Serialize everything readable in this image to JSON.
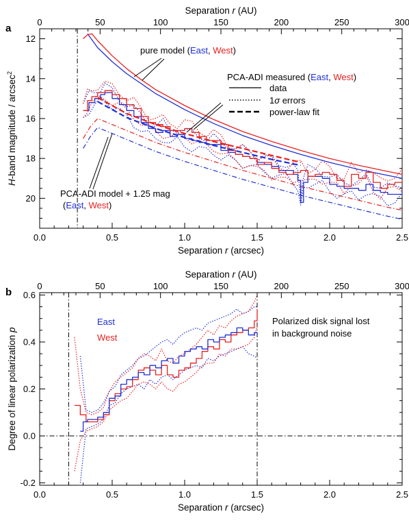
{
  "colors": {
    "east": "#1f2fd6",
    "west": "#e8201e",
    "axis": "#000000"
  },
  "chart_data": [
    {
      "panel_label": "a",
      "type": "line",
      "xlabel": "Separation r (arcsec)",
      "xlabel_parts": [
        "Separation ",
        "r",
        " (arcsec)"
      ],
      "x2label": "Separation r (AU)",
      "x2label_parts": [
        "Separation ",
        "r",
        " (AU)"
      ],
      "ylabel": "H-band magnitude / arcsec²",
      "ylabel_parts": [
        "H",
        "-band magnitude / arcsec",
        "2"
      ],
      "xlim": [
        0,
        2.5
      ],
      "ylim": [
        21.5,
        11.5
      ],
      "y_inverted": true,
      "x_ticks": [
        0.0,
        0.5,
        1.0,
        1.5,
        2.0,
        2.5
      ],
      "x_tick_labels": [
        "0.0",
        "0.5",
        "1.0",
        "1.5",
        "2.0",
        "2.5"
      ],
      "x2_ticks": [
        0,
        50,
        100,
        150,
        200,
        250,
        300
      ],
      "x2_tick_labels": [
        "0",
        "50",
        "100",
        "150",
        "200",
        "250",
        "300"
      ],
      "y_ticks": [
        12,
        14,
        16,
        18,
        20
      ],
      "y_tick_labels": [
        "12",
        "14",
        "16",
        "18",
        "20"
      ],
      "vline_x": 0.26,
      "annotations": {
        "pure_model": [
          "pure model (",
          "East",
          ", ",
          "West",
          ")"
        ],
        "measured": [
          "PCA-ADI measured (",
          "East",
          ", ",
          "West",
          ")"
        ],
        "legend_data": "data",
        "legend_errors": [
          "1",
          "σ",
          " errors"
        ],
        "legend_fit": "power-law fit",
        "model_line1": "PCA-ADI model + 1.25 mag",
        "model_line2": [
          "(",
          "East",
          ", ",
          "West",
          ")"
        ]
      },
      "series": [
        {
          "name": "pure model East",
          "x": [
            0.33,
            0.4,
            0.5,
            0.6,
            0.7,
            0.8,
            1.0,
            1.2,
            1.4,
            1.6,
            1.8,
            2.0,
            2.2,
            2.4,
            2.5
          ],
          "y": [
            11.75,
            12.45,
            13.15,
            13.75,
            14.25,
            14.75,
            15.55,
            16.25,
            16.85,
            17.35,
            17.8,
            18.2,
            18.55,
            18.85,
            19.0
          ]
        },
        {
          "name": "pure model West",
          "x": [
            0.3,
            0.33,
            0.36,
            0.4,
            0.5,
            0.6,
            0.7,
            0.8,
            1.0,
            1.2,
            1.4,
            1.6,
            1.8,
            2.0,
            2.2,
            2.4,
            2.5
          ],
          "y": [
            12.0,
            11.8,
            11.75,
            12.1,
            12.85,
            13.5,
            14.05,
            14.55,
            15.35,
            16.05,
            16.65,
            17.15,
            17.6,
            18.0,
            18.35,
            18.65,
            18.8
          ]
        },
        {
          "name": "measured East",
          "x": [
            0.3,
            0.34,
            0.38,
            0.42,
            0.45,
            0.5,
            0.55,
            0.6,
            0.65,
            0.7,
            0.75,
            0.8,
            0.85,
            0.9,
            0.95,
            1.0,
            1.05,
            1.1,
            1.15,
            1.2,
            1.25,
            1.3,
            1.35,
            1.4,
            1.45,
            1.5,
            1.55,
            1.6,
            1.65,
            1.7,
            1.75,
            1.78,
            1.8,
            1.82,
            1.85,
            1.9,
            1.95,
            2.0,
            2.05,
            2.1,
            2.15,
            2.2,
            2.25,
            2.3,
            2.35,
            2.4,
            2.45,
            2.5
          ],
          "y": [
            15.6,
            15.2,
            15.0,
            14.8,
            14.7,
            15.0,
            15.3,
            15.6,
            15.9,
            16.2,
            16.5,
            16.7,
            16.6,
            16.9,
            16.8,
            17.0,
            17.1,
            17.2,
            17.3,
            17.3,
            17.6,
            17.7,
            17.8,
            17.9,
            18.0,
            18.2,
            18.3,
            18.4,
            18.6,
            18.6,
            18.8,
            19.1,
            20.2,
            19.2,
            18.9,
            18.9,
            19.0,
            19.3,
            19.4,
            19.5,
            19.5,
            19.6,
            19.3,
            19.6,
            19.7,
            19.8,
            19.8,
            19.6
          ]
        },
        {
          "name": "measured West",
          "x": [
            0.3,
            0.33,
            0.36,
            0.4,
            0.45,
            0.5,
            0.55,
            0.6,
            0.65,
            0.7,
            0.75,
            0.8,
            0.85,
            0.9,
            0.95,
            1.0,
            1.05,
            1.1,
            1.15,
            1.2,
            1.25,
            1.3,
            1.35,
            1.4,
            1.45,
            1.5,
            1.55,
            1.6,
            1.65,
            1.7,
            1.75,
            1.8,
            1.85,
            1.9,
            1.95,
            2.0,
            2.05,
            2.1,
            2.15,
            2.2,
            2.25,
            2.3,
            2.35,
            2.4,
            2.45,
            2.5
          ],
          "y": [
            15.6,
            15.1,
            14.9,
            14.7,
            14.6,
            14.8,
            15.0,
            15.3,
            15.5,
            15.9,
            16.2,
            16.3,
            16.4,
            16.6,
            16.6,
            16.5,
            16.7,
            16.9,
            17.1,
            17.1,
            17.3,
            17.6,
            17.8,
            17.9,
            18.0,
            18.3,
            18.2,
            18.5,
            18.7,
            18.8,
            18.7,
            18.6,
            18.9,
            18.8,
            18.7,
            18.8,
            19.1,
            19.4,
            18.8,
            19.0,
            18.7,
            19.2,
            19.5,
            19.3,
            19.2,
            19.1
          ]
        },
        {
          "name": "power-law fit East",
          "x": [
            0.4,
            0.6,
            0.8,
            1.0,
            1.2,
            1.4,
            1.6,
            1.8
          ],
          "y": [
            15.15,
            15.95,
            16.5,
            16.95,
            17.35,
            17.7,
            18.05,
            18.35
          ]
        },
        {
          "name": "power-law fit West",
          "x": [
            0.4,
            0.6,
            0.8,
            1.0,
            1.2,
            1.4,
            1.6,
            1.8
          ],
          "y": [
            14.95,
            15.75,
            16.3,
            16.75,
            17.15,
            17.5,
            17.85,
            18.2
          ]
        },
        {
          "name": "model East",
          "x": [
            0.3,
            0.35,
            0.4,
            0.5,
            0.6,
            0.7,
            0.8,
            1.0,
            1.2,
            1.4,
            1.6,
            1.8,
            2.0,
            2.2,
            2.4,
            2.5
          ],
          "y": [
            17.5,
            16.9,
            16.45,
            16.75,
            17.05,
            17.35,
            17.65,
            18.15,
            18.6,
            19.05,
            19.45,
            19.85,
            20.2,
            20.55,
            20.9,
            21.05
          ]
        },
        {
          "name": "model West",
          "x": [
            0.3,
            0.35,
            0.4,
            0.5,
            0.6,
            0.7,
            0.8,
            1.0,
            1.2,
            1.4,
            1.6,
            1.8,
            2.0,
            2.2,
            2.4,
            2.5
          ],
          "y": [
            17.0,
            16.4,
            16.0,
            16.3,
            16.6,
            16.9,
            17.2,
            17.7,
            18.15,
            18.6,
            19.0,
            19.4,
            19.75,
            20.1,
            20.45,
            20.6
          ]
        }
      ]
    },
    {
      "panel_label": "b",
      "type": "line",
      "xlabel": "Separation r (arcsec)",
      "xlabel_parts": [
        "Separation ",
        "r",
        " (arcsec)"
      ],
      "x2label": "Separation r (AU)",
      "x2label_parts": [
        "Separation ",
        "r",
        " (AU)"
      ],
      "ylabel": "Degree of linear polarization p",
      "ylabel_parts": [
        "Degree of linear polarization ",
        "p"
      ],
      "xlim": [
        0,
        2.5
      ],
      "ylim": [
        -0.21,
        0.61
      ],
      "x_ticks": [
        0.0,
        0.5,
        1.0,
        1.5,
        2.0,
        2.5
      ],
      "x_tick_labels": [
        "0.0",
        "0.5",
        "1.0",
        "1.5",
        "2.0",
        "2.5"
      ],
      "x2_ticks": [
        0,
        50,
        100,
        150,
        200,
        250,
        300
      ],
      "x2_tick_labels": [
        "0",
        "50",
        "100",
        "150",
        "200",
        "250",
        "300"
      ],
      "y_ticks": [
        -0.2,
        0.0,
        0.2,
        0.4,
        0.6
      ],
      "y_tick_labels": [
        "-0.2",
        "0.0",
        "0.2",
        "0.4",
        "0.6"
      ],
      "vlines_x": [
        0.2,
        1.5
      ],
      "hline_y": 0.0,
      "legend": [
        "East",
        "West"
      ],
      "annotation": [
        "Polarized disk signal lost",
        "in background noise"
      ],
      "series": [
        {
          "name": "East",
          "x": [
            0.28,
            0.3,
            0.33,
            0.36,
            0.4,
            0.44,
            0.48,
            0.52,
            0.56,
            0.6,
            0.64,
            0.68,
            0.72,
            0.76,
            0.8,
            0.84,
            0.88,
            0.92,
            0.96,
            1.0,
            1.04,
            1.08,
            1.12,
            1.16,
            1.2,
            1.24,
            1.28,
            1.32,
            1.36,
            1.4,
            1.44,
            1.48,
            1.5
          ],
          "y": [
            0.02,
            0.06,
            0.07,
            0.07,
            0.08,
            0.1,
            0.16,
            0.17,
            0.22,
            0.24,
            0.25,
            0.27,
            0.26,
            0.3,
            0.29,
            0.32,
            0.33,
            0.31,
            0.34,
            0.36,
            0.37,
            0.38,
            0.37,
            0.41,
            0.4,
            0.42,
            0.43,
            0.44,
            0.46,
            0.45,
            0.43,
            0.44,
            0.43
          ]
        },
        {
          "name": "West",
          "x": [
            0.24,
            0.28,
            0.32,
            0.36,
            0.4,
            0.44,
            0.48,
            0.52,
            0.56,
            0.6,
            0.64,
            0.68,
            0.72,
            0.76,
            0.8,
            0.84,
            0.88,
            0.92,
            0.96,
            1.0,
            1.04,
            1.08,
            1.12,
            1.16,
            1.2,
            1.24,
            1.28,
            1.32,
            1.36,
            1.4,
            1.44,
            1.48,
            1.5
          ],
          "y": [
            0.13,
            0.09,
            0.06,
            0.06,
            0.07,
            0.09,
            0.15,
            0.18,
            0.2,
            0.21,
            0.24,
            0.28,
            0.29,
            0.28,
            0.26,
            0.3,
            0.26,
            0.25,
            0.28,
            0.29,
            0.31,
            0.33,
            0.36,
            0.38,
            0.37,
            0.41,
            0.4,
            0.43,
            0.44,
            0.45,
            0.46,
            0.49,
            0.54
          ]
        },
        {
          "name": "East upper",
          "x": [
            0.28,
            0.32,
            0.36,
            0.4,
            0.44,
            0.48,
            0.52,
            0.56,
            0.6,
            0.64,
            0.68,
            0.72,
            0.76,
            0.8,
            0.84,
            0.88,
            0.92,
            0.96,
            1.0,
            1.04,
            1.08,
            1.12,
            1.16,
            1.2,
            1.24,
            1.28,
            1.32,
            1.36,
            1.4,
            1.44,
            1.48,
            1.5
          ],
          "y": [
            0.34,
            0.11,
            0.1,
            0.11,
            0.14,
            0.19,
            0.21,
            0.26,
            0.28,
            0.3,
            0.33,
            0.34,
            0.36,
            0.38,
            0.4,
            0.41,
            0.39,
            0.42,
            0.44,
            0.45,
            0.46,
            0.45,
            0.48,
            0.49,
            0.5,
            0.51,
            0.52,
            0.54,
            0.52,
            0.53,
            0.55,
            0.55
          ]
        },
        {
          "name": "East lower",
          "x": [
            0.28,
            0.32,
            0.36,
            0.4,
            0.44,
            0.48,
            0.52,
            0.56,
            0.6,
            0.64,
            0.68,
            0.72,
            0.76,
            0.8,
            0.84,
            0.88,
            0.92,
            0.96,
            1.0,
            1.04,
            1.08,
            1.12,
            1.16,
            1.2,
            1.24,
            1.28,
            1.32,
            1.36,
            1.4,
            1.44,
            1.48,
            1.5
          ],
          "y": [
            -0.2,
            0.03,
            0.04,
            0.05,
            0.07,
            0.13,
            0.14,
            0.18,
            0.2,
            0.21,
            0.22,
            0.2,
            0.24,
            0.22,
            0.25,
            0.26,
            0.24,
            0.26,
            0.28,
            0.29,
            0.3,
            0.29,
            0.33,
            0.32,
            0.34,
            0.35,
            0.36,
            0.37,
            0.38,
            0.35,
            0.34,
            0.33
          ]
        },
        {
          "name": "West upper",
          "x": [
            0.24,
            0.28,
            0.32,
            0.36,
            0.4,
            0.44,
            0.48,
            0.52,
            0.56,
            0.6,
            0.64,
            0.68,
            0.72,
            0.76,
            0.8,
            0.84,
            0.88,
            0.92,
            0.96,
            1.0,
            1.04,
            1.08,
            1.12,
            1.16,
            1.2,
            1.24,
            1.28,
            1.32,
            1.36,
            1.4,
            1.44,
            1.48,
            1.5
          ],
          "y": [
            0.42,
            0.2,
            0.1,
            0.09,
            0.1,
            0.12,
            0.19,
            0.23,
            0.25,
            0.27,
            0.29,
            0.33,
            0.35,
            0.34,
            0.32,
            0.37,
            0.32,
            0.31,
            0.34,
            0.35,
            0.37,
            0.39,
            0.42,
            0.45,
            0.43,
            0.47,
            0.46,
            0.49,
            0.51,
            0.52,
            0.53,
            0.57,
            0.6
          ]
        },
        {
          "name": "West lower",
          "x": [
            0.24,
            0.28,
            0.32,
            0.36,
            0.4,
            0.44,
            0.48,
            0.52,
            0.56,
            0.6,
            0.64,
            0.68,
            0.72,
            0.76,
            0.8,
            0.84,
            0.88,
            0.92,
            0.96,
            1.0,
            1.04,
            1.08,
            1.12,
            1.16,
            1.2,
            1.24,
            1.28,
            1.32,
            1.36,
            1.4,
            1.44,
            1.48,
            1.5
          ],
          "y": [
            -0.15,
            -0.02,
            0.02,
            0.03,
            0.04,
            0.06,
            0.11,
            0.13,
            0.15,
            0.16,
            0.19,
            0.22,
            0.23,
            0.22,
            0.2,
            0.23,
            0.2,
            0.19,
            0.22,
            0.23,
            0.25,
            0.27,
            0.3,
            0.31,
            0.31,
            0.35,
            0.34,
            0.37,
            0.37,
            0.38,
            0.39,
            0.42,
            0.47
          ]
        }
      ]
    }
  ]
}
